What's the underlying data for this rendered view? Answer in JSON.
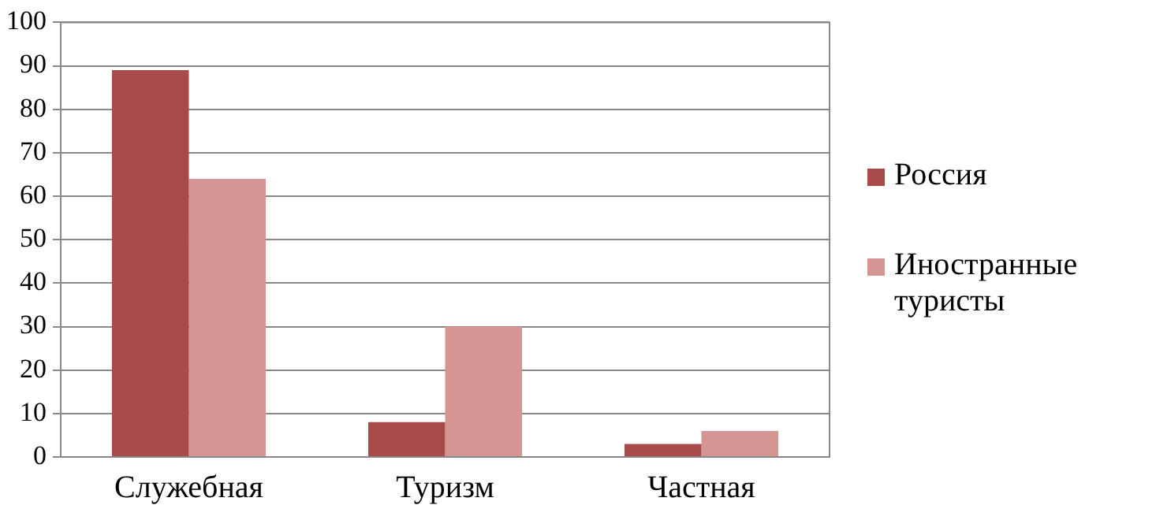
{
  "chart_data": {
    "type": "bar",
    "categories": [
      "Служебная",
      "Туризм",
      "Частная"
    ],
    "series": [
      {
        "name": "Россия",
        "color": "#a8494a",
        "values": [
          89,
          8,
          3
        ]
      },
      {
        "name": "Иностранные туристы",
        "color": "#d49593",
        "values": [
          64,
          30,
          6
        ]
      }
    ],
    "ylim": [
      0,
      100
    ],
    "yticks": [
      0,
      10,
      20,
      30,
      40,
      50,
      60,
      70,
      80,
      90,
      100
    ],
    "grid": "y",
    "legend": "right"
  }
}
